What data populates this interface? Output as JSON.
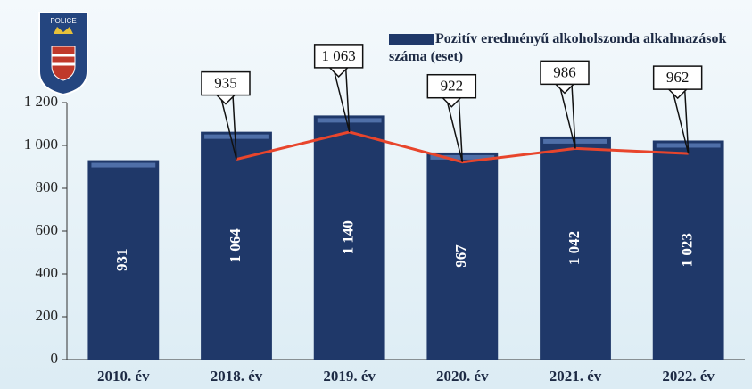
{
  "chart_data": {
    "type": "bar",
    "categories": [
      "2010. év",
      "2018. év",
      "2019. év",
      "2020. év",
      "2021. év",
      "2022. év"
    ],
    "series": [
      {
        "name": "Pozitív eredményű alkoholszonda alkalmazások száma (eset)",
        "type": "bar",
        "color": "#1f3869",
        "values": [
          931,
          1064,
          1140,
          967,
          1042,
          1023
        ],
        "value_labels": [
          "931",
          "1 064",
          "1 140",
          "967",
          "1 042",
          "1 023"
        ]
      },
      {
        "type": "line",
        "color": "#e8452c",
        "values": [
          null,
          935,
          1063,
          922,
          986,
          962
        ],
        "value_labels": [
          null,
          "935",
          "1 063",
          "922",
          "986",
          "962"
        ]
      }
    ],
    "ylim": [
      0,
      1200
    ],
    "yticks": [
      0,
      200,
      400,
      600,
      800,
      {
        "value": 1000,
        "label": "1 000"
      },
      {
        "value": 1200,
        "label": "1 200"
      }
    ],
    "grid": false
  }
}
